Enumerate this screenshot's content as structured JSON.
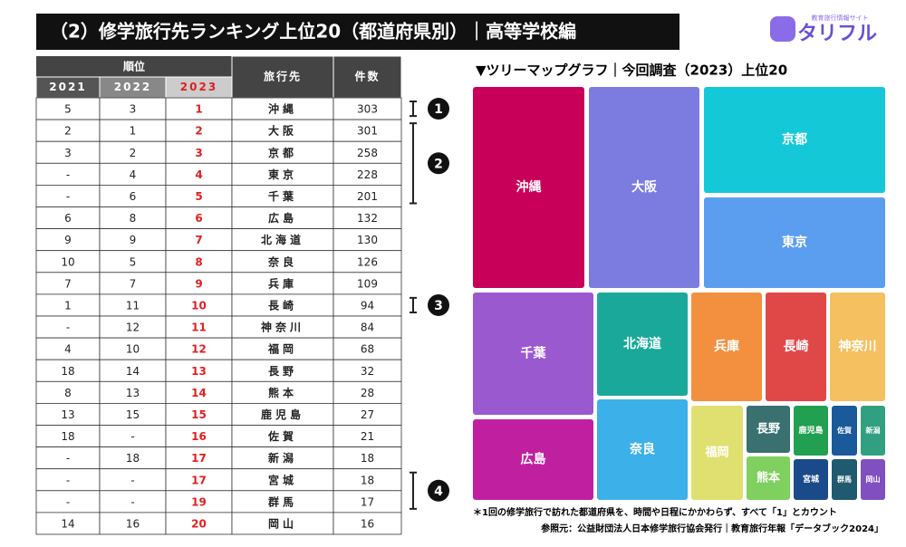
{
  "header": {
    "title": "（2）修学旅行先ランキング上位20（都道府県別）｜高等学校編",
    "logo": "タリフル",
    "logo_sub": "教育旅行情報サイト"
  },
  "table": {
    "group_header": "順位",
    "columns": [
      "2021",
      "2022",
      "2023",
      "旅行先",
      "件数"
    ],
    "rows": [
      [
        "5",
        "3",
        "1",
        "沖縄",
        "303"
      ],
      [
        "2",
        "1",
        "2",
        "大阪",
        "301"
      ],
      [
        "3",
        "2",
        "3",
        "京都",
        "258"
      ],
      [
        "-",
        "4",
        "4",
        "東京",
        "228"
      ],
      [
        "-",
        "6",
        "5",
        "千葉",
        "201"
      ],
      [
        "6",
        "8",
        "6",
        "広島",
        "132"
      ],
      [
        "9",
        "9",
        "7",
        "北海道",
        "130"
      ],
      [
        "10",
        "5",
        "8",
        "奈良",
        "126"
      ],
      [
        "7",
        "7",
        "9",
        "兵庫",
        "109"
      ],
      [
        "1",
        "11",
        "10",
        "長崎",
        "94"
      ],
      [
        "-",
        "12",
        "11",
        "神奈川",
        "84"
      ],
      [
        "4",
        "10",
        "12",
        "福岡",
        "68"
      ],
      [
        "18",
        "14",
        "13",
        "長野",
        "32"
      ],
      [
        "8",
        "13",
        "14",
        "熊本",
        "28"
      ],
      [
        "13",
        "15",
        "15",
        "鹿児島",
        "27"
      ],
      [
        "18",
        "-",
        "16",
        "佐賀",
        "21"
      ],
      [
        "-",
        "18",
        "17",
        "新潟",
        "18"
      ],
      [
        "-",
        "-",
        "17",
        "宮城",
        "18"
      ],
      [
        "-",
        "-",
        "19",
        "群馬",
        "17"
      ],
      [
        "14",
        "16",
        "20",
        "岡山",
        "16"
      ]
    ]
  },
  "markers": [
    "1",
    "2",
    "3",
    "4"
  ],
  "treemap": {
    "title": "▼ツリーマップグラフ｜今回調査（2023）上位20",
    "tiles": [
      {
        "label": "沖縄",
        "color": "#c8005a"
      },
      {
        "label": "大阪",
        "color": "#7b7be0"
      },
      {
        "label": "京都",
        "color": "#14c8d8"
      },
      {
        "label": "東京",
        "color": "#5b9ef0"
      },
      {
        "label": "千葉",
        "color": "#9b59d0"
      },
      {
        "label": "広島",
        "color": "#c020a0"
      },
      {
        "label": "北海道",
        "color": "#1aa89a"
      },
      {
        "label": "奈良",
        "color": "#3cb0e8"
      },
      {
        "label": "兵庫",
        "color": "#f39040"
      },
      {
        "label": "長崎",
        "color": "#e04848"
      },
      {
        "label": "神奈川",
        "color": "#f5c060"
      },
      {
        "label": "福岡",
        "color": "#e0e070"
      },
      {
        "label": "長野",
        "color": "#3a7070"
      },
      {
        "label": "熊本",
        "color": "#80d060"
      },
      {
        "label": "鹿児島",
        "color": "#20a050"
      },
      {
        "label": "佐賀",
        "color": "#1a5a9a"
      },
      {
        "label": "新潟",
        "color": "#30a080"
      },
      {
        "label": "宮城",
        "color": "#1a4a8a"
      },
      {
        "label": "群馬",
        "color": "#205a70"
      },
      {
        "label": "岡山",
        "color": "#8050c0"
      }
    ]
  },
  "notes": [
    "＊1回の修学旅行で訪れた都道府県を、時間や日程にかかわらず、すべて「1」とカウント",
    "参照元：公益財団法人日本修学旅行協会発行｜教育旅行年報「データブック2024」"
  ]
}
